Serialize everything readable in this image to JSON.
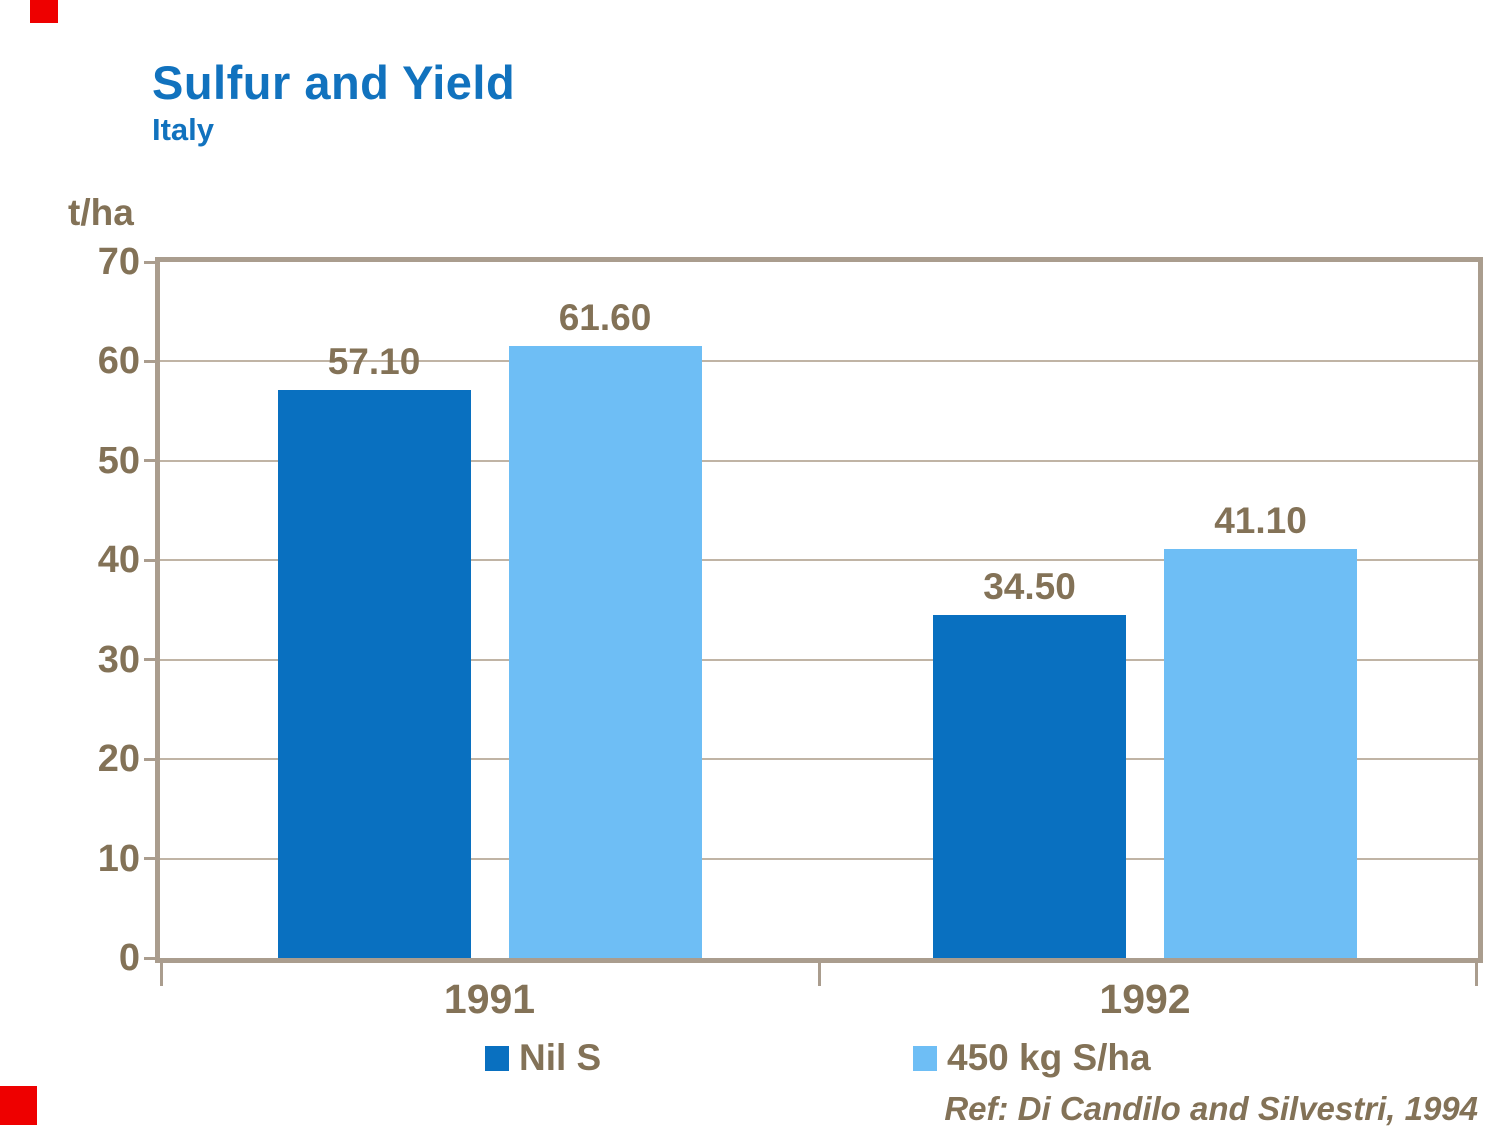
{
  "header": {
    "title": "Sulfur and Yield",
    "subtitle": "Italy"
  },
  "chart_data": {
    "type": "bar",
    "categories": [
      "1991",
      "1992"
    ],
    "series": [
      {
        "name": "Nil S",
        "color": "#0970C0",
        "values": [
          57.1,
          34.5
        ]
      },
      {
        "name": "450 kg S/ha",
        "color": "#6EBEF5",
        "values": [
          61.6,
          41.1
        ]
      }
    ],
    "title": "Sulfur and Yield",
    "subtitle": "Italy",
    "xlabel": "",
    "ylabel": "t/ha",
    "ylim": [
      0,
      70
    ],
    "ytick_step": 10,
    "grid": true,
    "legend_position": "bottom",
    "value_label_decimals": 2
  },
  "footer": {
    "reference": "Ref: Di Candilo and Silvestri, 1994"
  },
  "colors": {
    "title_blue": "#1172BE",
    "axis_text_brown": "#837257",
    "frame_tan": "#AA9D8E",
    "gridline_tan": "#B5A795",
    "corner_mark_red": "#EE0000",
    "bar_dark_blue": "#0970C0",
    "bar_light_blue": "#6EBEF5"
  }
}
